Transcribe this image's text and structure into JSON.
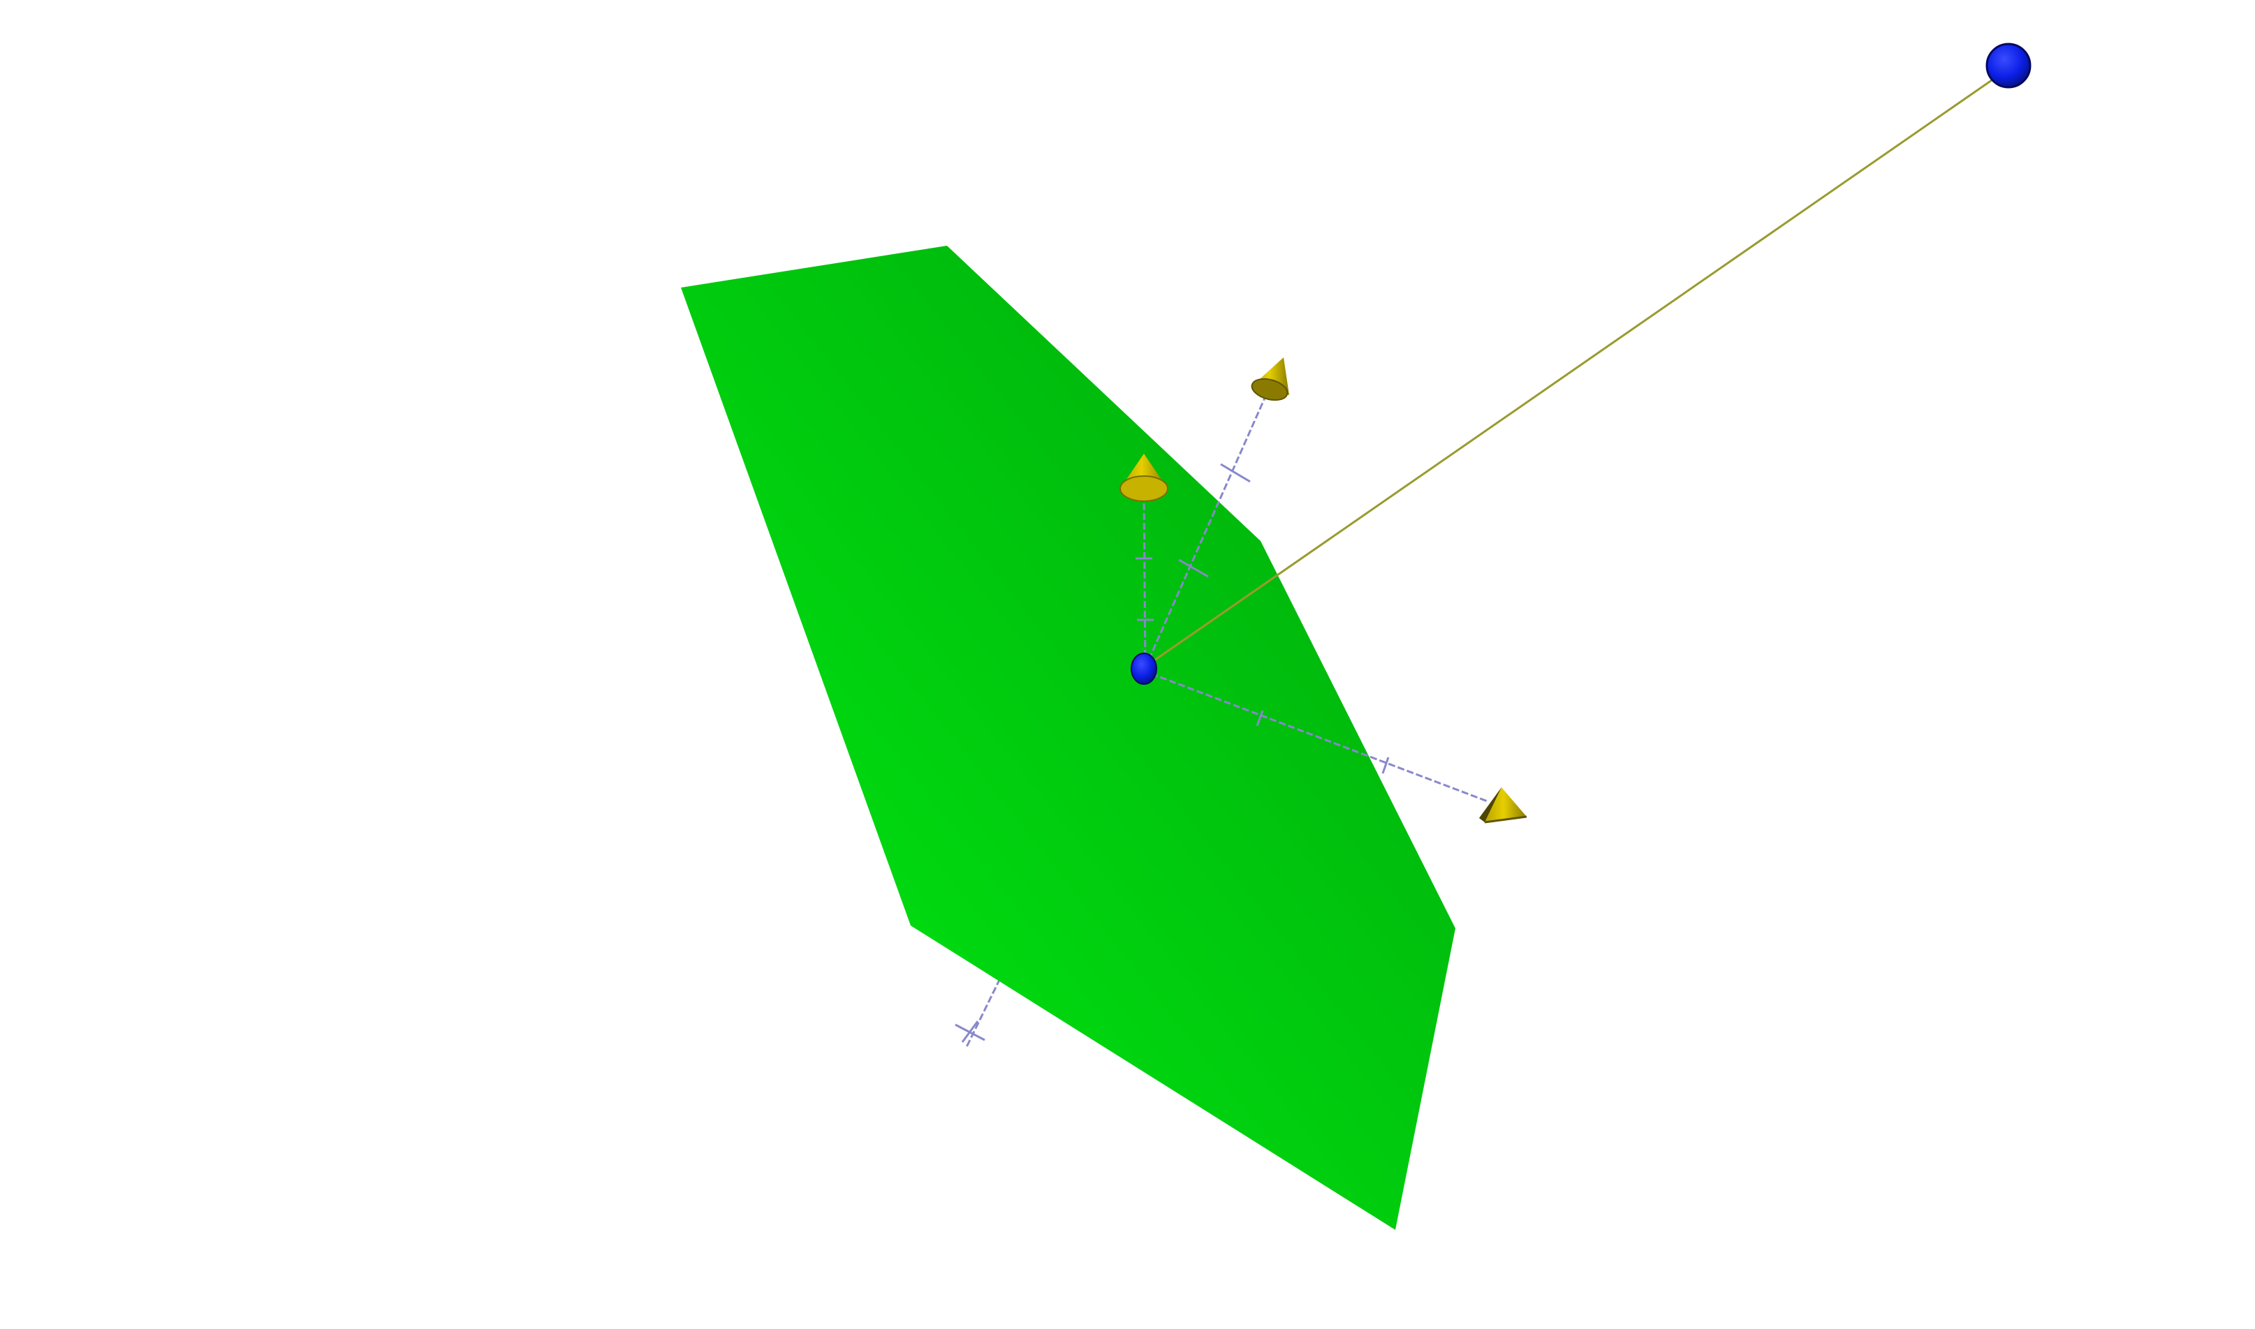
{
  "scene": {
    "background": "#ffffff",
    "colors": {
      "plane_light": "#00e810",
      "plane_dark": "#00a808",
      "sphere": "#0b1fe6",
      "sphere_dark": "#0a0a80",
      "cone": "#d8c400",
      "cone_dark": "#6e6400",
      "axis_line": "#8888cc",
      "connector_line": "#9a9a30"
    },
    "objects": [
      {
        "kind": "plane",
        "name": "hexagonal-plane",
        "color": "#00cc0c"
      },
      {
        "kind": "sphere",
        "name": "origin-sphere",
        "color": "#0b1fe6"
      },
      {
        "kind": "sphere",
        "name": "far-sphere",
        "color": "#0b1fe6"
      },
      {
        "kind": "line",
        "name": "connector-line",
        "color": "#9a9a30"
      },
      {
        "kind": "axis",
        "name": "axis-up",
        "ticks": 2,
        "arrow": "cone"
      },
      {
        "kind": "axis",
        "name": "axis-upper-right",
        "ticks": 2,
        "arrow": "cone"
      },
      {
        "kind": "axis",
        "name": "axis-right",
        "ticks": 2,
        "arrow": "cone"
      },
      {
        "kind": "axis",
        "name": "axis-lower-left",
        "ticks": 1,
        "arrow": "none"
      }
    ]
  }
}
